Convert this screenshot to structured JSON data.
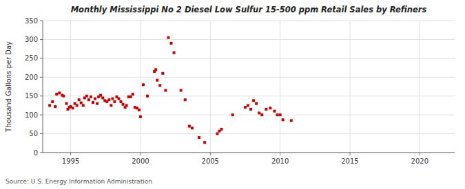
{
  "chart_data": {
    "type": "scatter",
    "title": "Monthly Mississippi No 2 Diesel Low Sulfur 15-500 ppm Retail Sales by Refiners",
    "ylabel": "Thousand Gallons per Day",
    "annotations": [
      "Source: U.S. Energy Information Administration"
    ],
    "color": "#cc0000",
    "marker": "square",
    "grid": true,
    "xlim": [
      1993.0,
      2022.5
    ],
    "ylim": [
      0,
      350
    ],
    "xticks": [
      1995,
      2000,
      2005,
      2010,
      2015,
      2020
    ],
    "yticks": [
      0,
      50,
      100,
      150,
      200,
      250,
      300,
      350
    ],
    "x": [
      1993.5,
      1993.7,
      1993.9,
      1994.0,
      1994.2,
      1994.4,
      1994.5,
      1994.7,
      1994.8,
      1994.9,
      1995.0,
      1995.15,
      1995.3,
      1995.45,
      1995.6,
      1995.75,
      1995.9,
      1996.0,
      1996.15,
      1996.3,
      1996.45,
      1996.6,
      1996.75,
      1996.9,
      1997.0,
      1997.15,
      1997.3,
      1997.45,
      1997.6,
      1997.75,
      1997.9,
      1998.0,
      1998.15,
      1998.3,
      1998.45,
      1998.6,
      1998.75,
      1998.9,
      1999.0,
      1999.15,
      1999.3,
      1999.45,
      1999.6,
      1999.75,
      1999.9,
      2000.0,
      2000.2,
      2000.5,
      2001.0,
      2001.1,
      2001.2,
      2001.4,
      2001.6,
      2001.8,
      2002.0,
      2002.2,
      2002.4,
      2002.9,
      2003.2,
      2003.5,
      2003.7,
      2004.2,
      2004.6,
      2005.5,
      2005.65,
      2005.8,
      2006.6,
      2007.5,
      2007.7,
      2007.9,
      2008.1,
      2008.3,
      2008.5,
      2008.7,
      2009.0,
      2009.3,
      2009.6,
      2009.8,
      2010.0,
      2010.2,
      2010.8
    ],
    "values": [
      125,
      135,
      122,
      155,
      158,
      152,
      150,
      130,
      115,
      120,
      122,
      118,
      130,
      125,
      140,
      132,
      125,
      145,
      150,
      140,
      148,
      133,
      143,
      130,
      148,
      152,
      145,
      138,
      135,
      140,
      125,
      143,
      135,
      148,
      143,
      135,
      128,
      120,
      125,
      148,
      148,
      155,
      120,
      118,
      113,
      95,
      180,
      150,
      215,
      220,
      192,
      178,
      210,
      165,
      305,
      290,
      265,
      165,
      140,
      70,
      65,
      40,
      27,
      50,
      57,
      62,
      100,
      120,
      125,
      115,
      138,
      130,
      105,
      100,
      115,
      118,
      110,
      100,
      100,
      87,
      85
    ]
  }
}
